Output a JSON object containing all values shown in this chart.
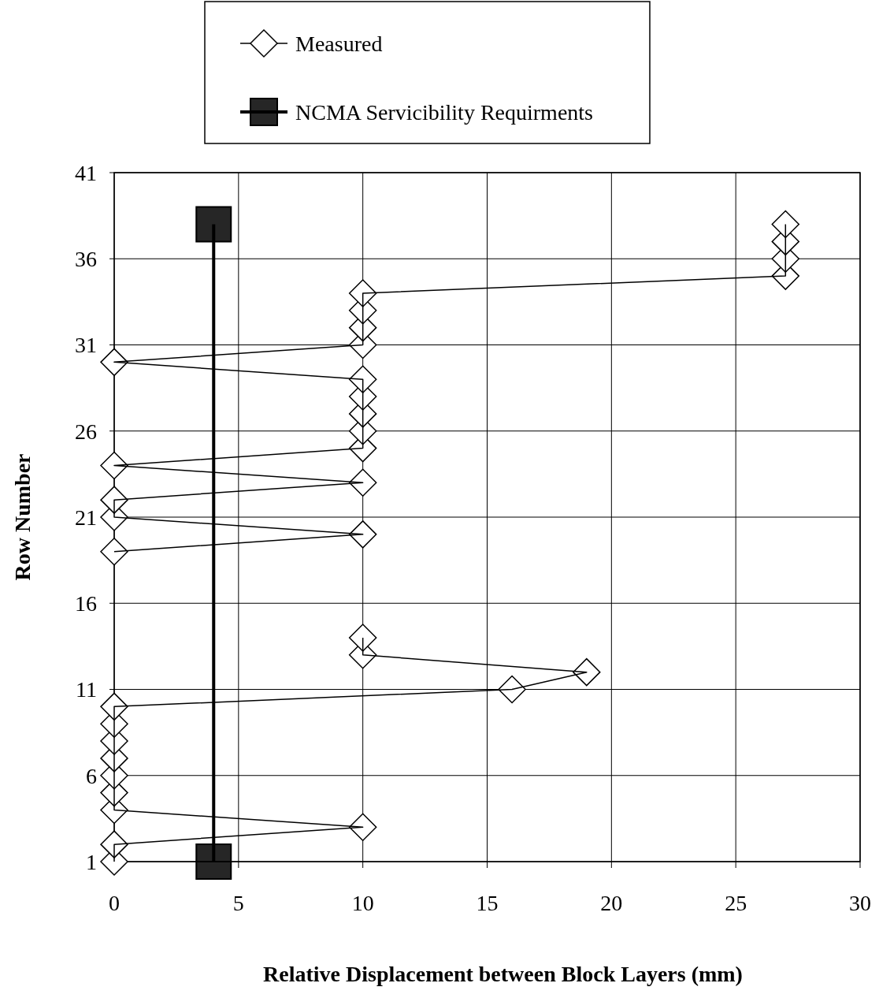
{
  "chart_data": {
    "type": "line",
    "xlabel": "Relative Displacement between Block Layers (mm)",
    "ylabel": "Row Number",
    "xlim": [
      0,
      30
    ],
    "xticks": [
      0,
      5,
      10,
      15,
      20,
      25,
      30
    ],
    "ylim": [
      1,
      41
    ],
    "yticks": [
      1,
      6,
      11,
      16,
      21,
      26,
      31,
      36,
      41
    ],
    "grid": true,
    "legend": "top",
    "series": [
      {
        "name": "Measured",
        "color": "#000000",
        "marker": "diamond",
        "x": [
          0,
          0,
          10,
          0,
          0,
          0,
          0,
          0,
          0,
          0,
          16,
          19,
          10,
          10,
          null,
          null,
          null,
          null,
          0,
          10,
          0,
          0,
          10,
          0,
          10,
          10,
          10,
          10,
          10,
          0,
          10,
          10,
          10,
          10,
          27,
          27,
          27,
          27
        ],
        "values": [
          1,
          2,
          3,
          4,
          5,
          6,
          7,
          8,
          9,
          10,
          11,
          12,
          13,
          14,
          null,
          null,
          null,
          null,
          19,
          20,
          21,
          22,
          23,
          24,
          25,
          26,
          27,
          28,
          29,
          30,
          31,
          32,
          33,
          34,
          35,
          36,
          37,
          38
        ]
      },
      {
        "name": "NCMA Servicibility Requirments",
        "color": "#000000",
        "marker": "square",
        "x": [
          4,
          4
        ],
        "values": [
          1,
          38
        ]
      }
    ]
  }
}
